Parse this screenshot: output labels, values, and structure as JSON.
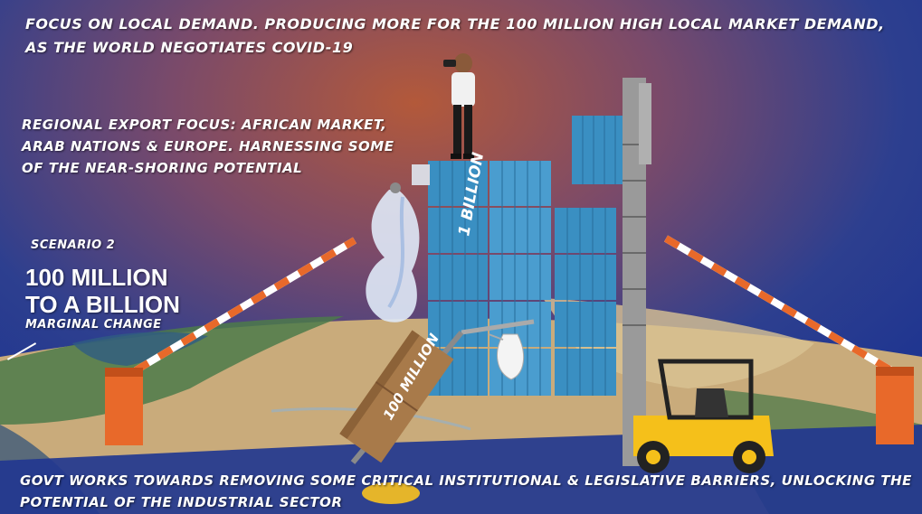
{
  "headline": "Focus on local demand. Producing more for the 100 million high local market demand, as the world negotiates COVID-19",
  "regional_focus": "Regional Export focus: African market, Arab nations & Europe. Harnessing some of the near-shoring potential",
  "scenario": {
    "label": "Scenario 2",
    "title_line1": "100 MILLION",
    "title_line2": "TO A BILLION",
    "subtitle": "Marginal change"
  },
  "crate_labels": {
    "tall_stack": "1 BILLION",
    "dolly_boxes": "100 MILLION"
  },
  "footer": "Govt works towards removing some critical institutional & legislative barriers, unlocking the potential of the industrial sector",
  "colors": {
    "sky_warm": "#b3593a",
    "sky_cool": "#1f3590",
    "crate_blue": "#3a8fc2",
    "barrier_orange": "#e8692a",
    "forklift_yellow": "#f5c01a",
    "cardboard": "#a87a4a"
  },
  "icons": [
    "person-binoculars-icon",
    "glass-flask-icon",
    "face-mask-icon",
    "forklift-icon",
    "barrier-gate-icon",
    "hand-truck-icon"
  ]
}
